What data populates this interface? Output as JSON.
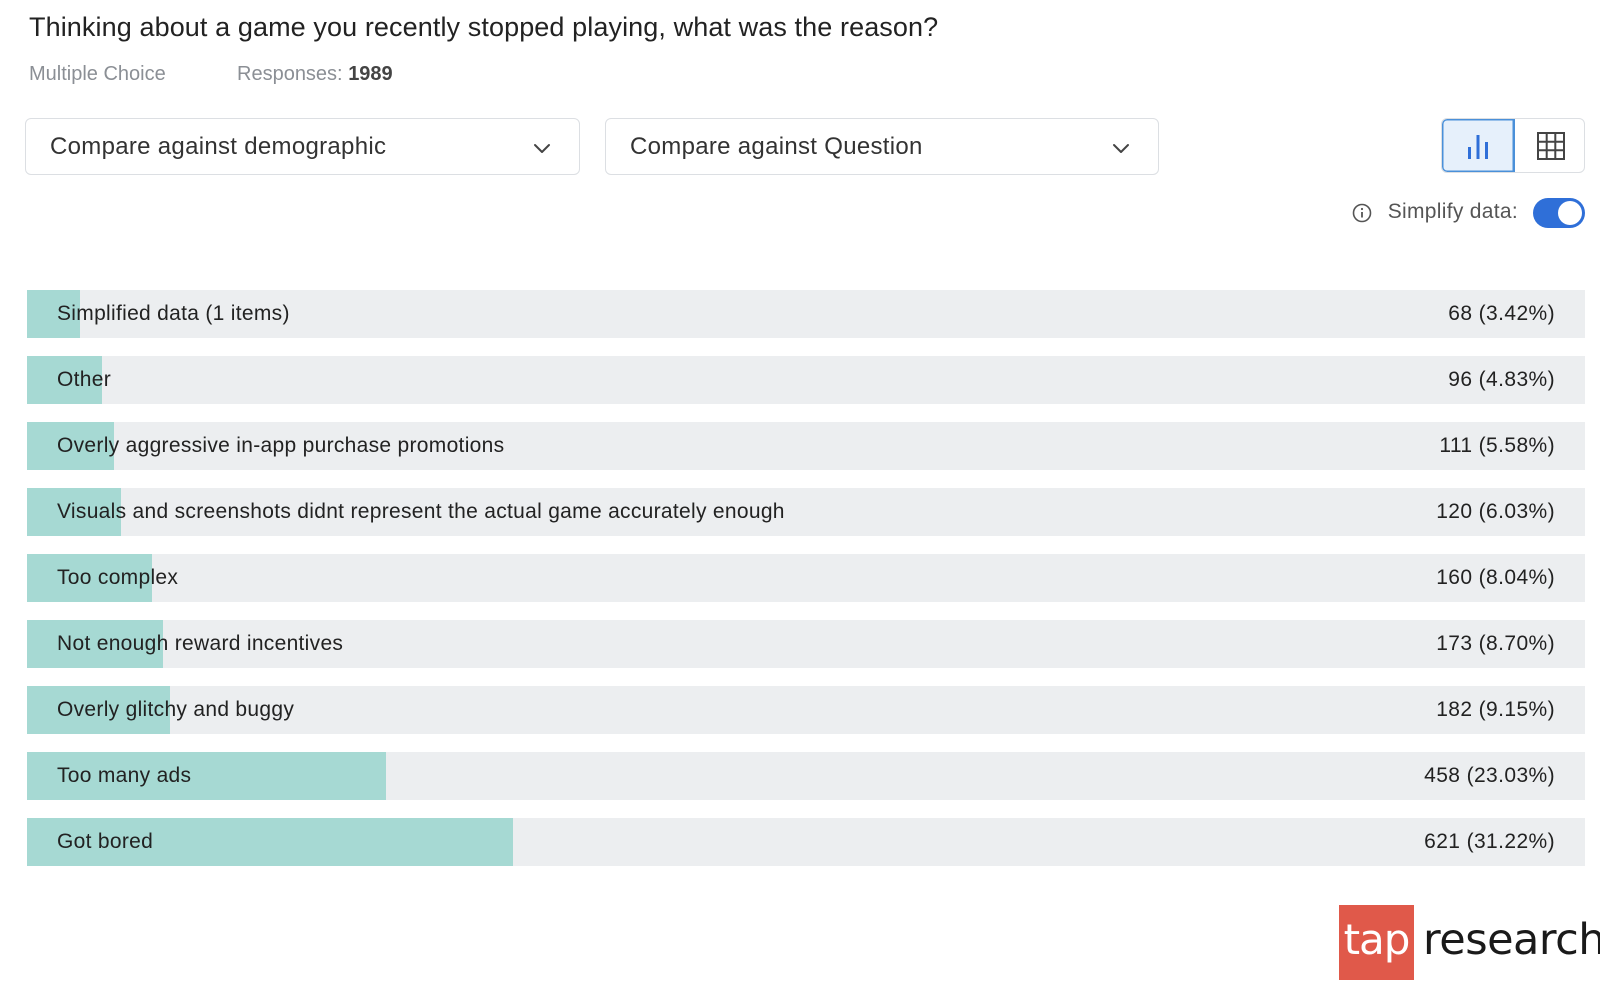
{
  "question": {
    "title": "Thinking about a game you recently stopped playing, what was the reason?",
    "type": "Multiple Choice",
    "responses_label": "Responses:",
    "responses_value": "1989"
  },
  "controls": {
    "demographic_dropdown": "Compare against demographic",
    "question_dropdown": "Compare against Question",
    "view_active": "bar-chart",
    "simplify_label": "Simplify data:",
    "simplify_on": true
  },
  "colors": {
    "bar_fill": "#a6d9d3",
    "track": "#eceef0",
    "toggle": "#2f6fd8",
    "logo": "#e0594a"
  },
  "chart_data": {
    "type": "bar",
    "orientation": "horizontal",
    "categories": [
      "Simplified data (1 items)",
      "Other",
      "Overly aggressive in-app purchase promotions",
      "Visuals and screenshots didnt represent the actual game accurately enough",
      "Too complex",
      "Not enough reward incentives",
      "Overly glitchy and buggy",
      "Too many ads",
      "Got bored"
    ],
    "counts": [
      68,
      96,
      111,
      120,
      160,
      173,
      182,
      458,
      621
    ],
    "percents": [
      3.42,
      4.83,
      5.58,
      6.03,
      8.04,
      8.7,
      9.15,
      23.03,
      31.22
    ],
    "value_labels": [
      "68 (3.42%)",
      "96 (4.83%)",
      "111 (5.58%)",
      "120 (6.03%)",
      "160 (8.04%)",
      "173 (8.70%)",
      "182 (9.15%)",
      "458 (23.03%)",
      "621 (31.22%)"
    ]
  },
  "logo": {
    "badge_text": "tap",
    "word_text": "research"
  }
}
